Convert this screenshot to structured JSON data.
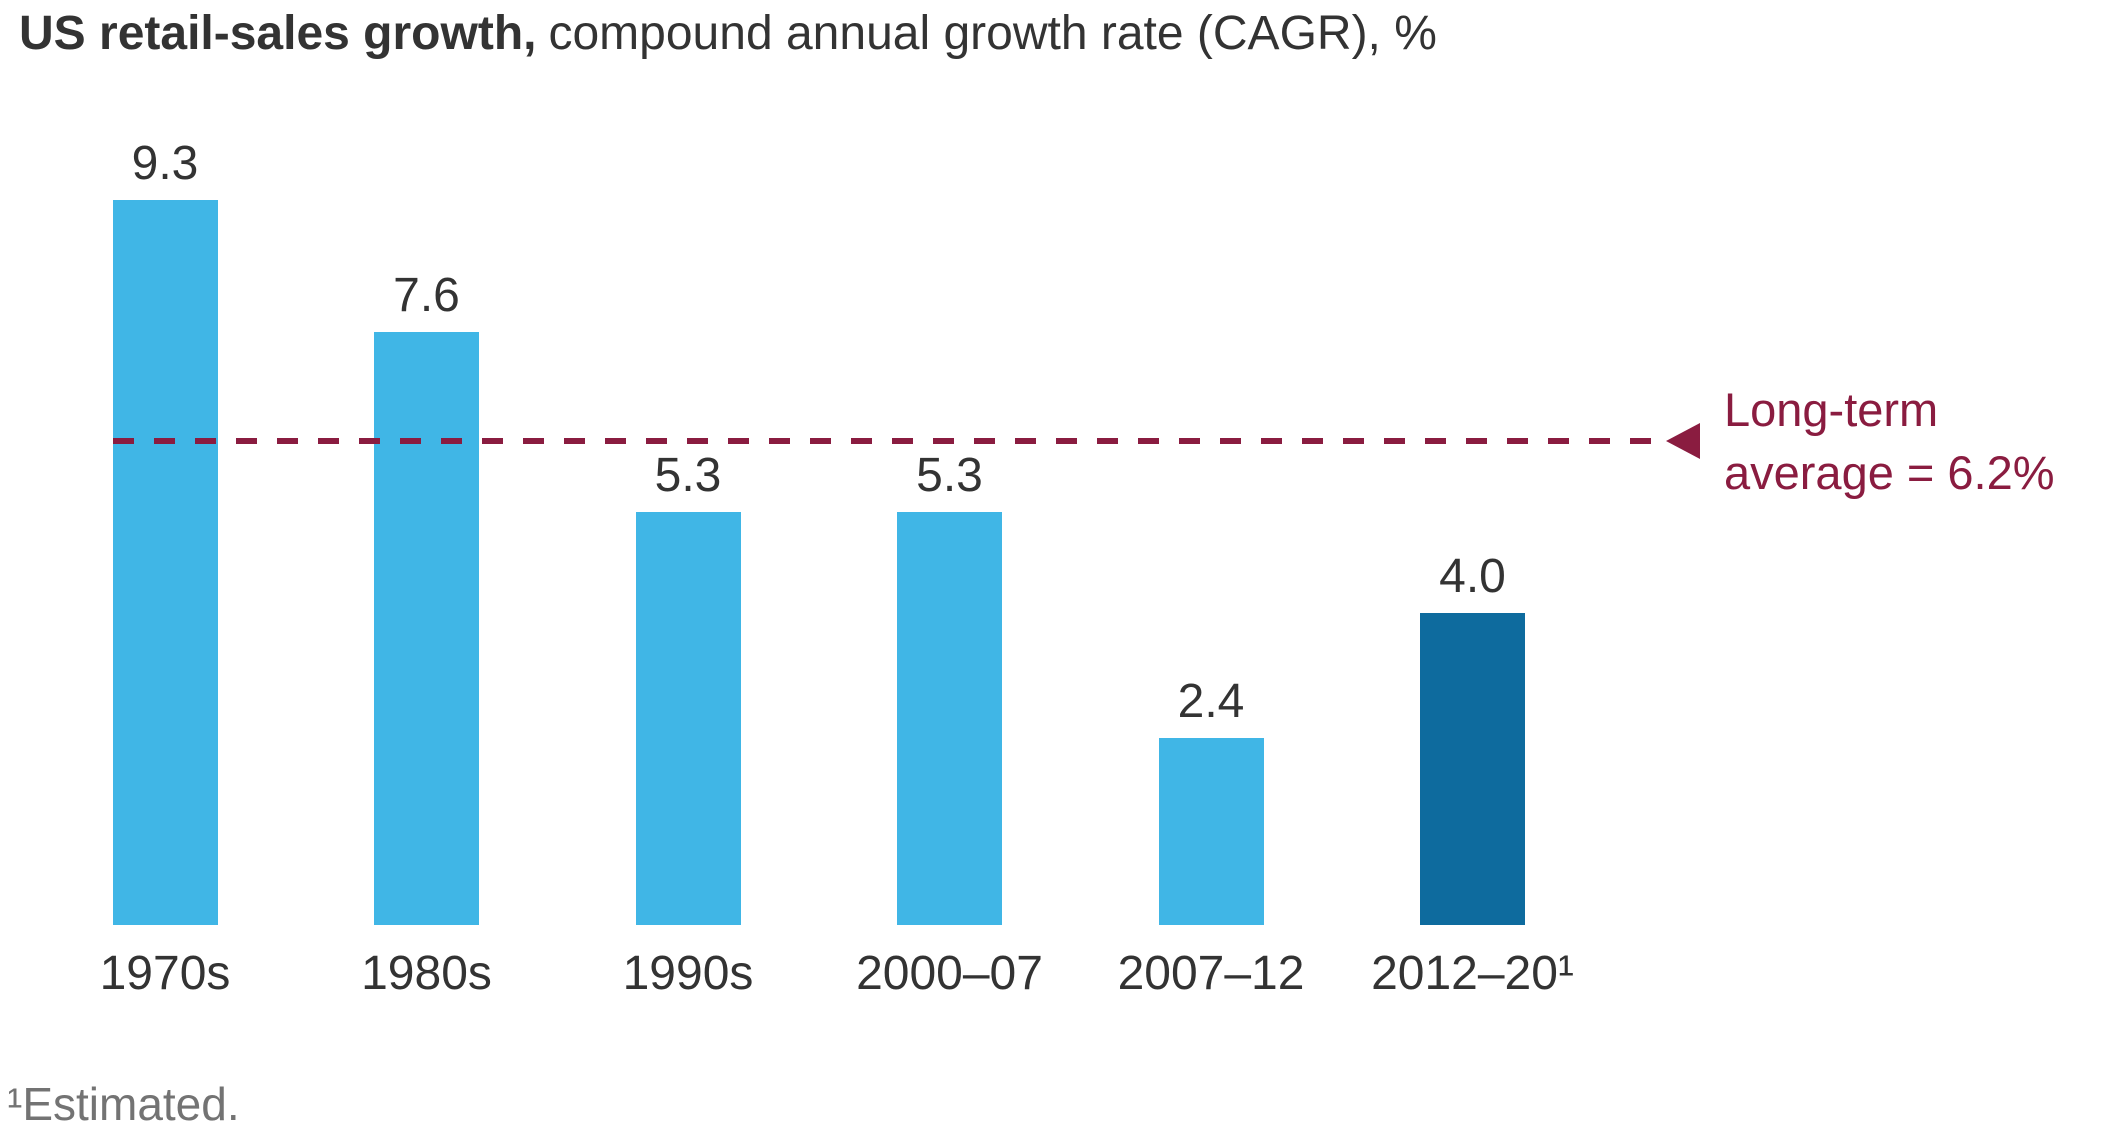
{
  "title": {
    "bold": "US retail-sales growth,",
    "regular": "compound annual growth rate (CAGR), %"
  },
  "annotation": {
    "line1": "Long-term",
    "line2": "average = 6.2%"
  },
  "footnote": "¹Estimated.",
  "colors": {
    "bar_light": "#40B6E6",
    "bar_dark": "#0E6B9E",
    "reference": "#8A1C40",
    "text": "#333333",
    "footnote_text": "#737373"
  },
  "chart_data": {
    "type": "bar",
    "title": "US retail-sales growth, compound annual growth rate (CAGR), %",
    "categories": [
      "1970s",
      "1980s",
      "1990s",
      "2000–07",
      "2007–12",
      "2012–20¹"
    ],
    "values": [
      9.3,
      7.6,
      5.3,
      5.3,
      2.4,
      4.0
    ],
    "value_labels": [
      "9.3",
      "7.6",
      "5.3",
      "5.3",
      "2.4",
      "4.0"
    ],
    "series_colors": [
      "#40B6E6",
      "#40B6E6",
      "#40B6E6",
      "#40B6E6",
      "#40B6E6",
      "#0E6B9E"
    ],
    "reference_line": {
      "value": 6.2,
      "label": "Long-term average = 6.2%",
      "style": "dashed",
      "color": "#8A1C40"
    },
    "ylim": [
      0,
      10
    ],
    "grid": false,
    "legend": "none",
    "xlabel": "",
    "ylabel": "CAGR, %",
    "footnote": "¹Estimated."
  }
}
